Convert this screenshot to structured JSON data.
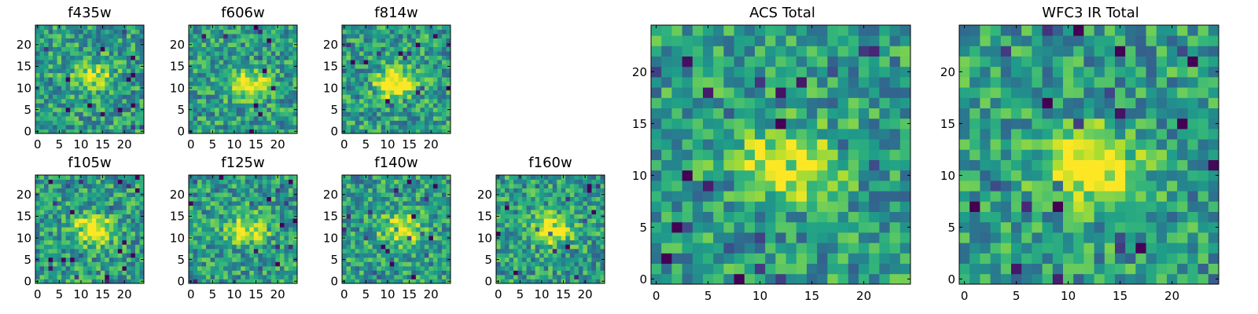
{
  "chart_data": [
    {
      "type": "heatmap",
      "title": "f435w",
      "xlim": [
        0,
        24
      ],
      "ylim": [
        0,
        24
      ],
      "xticks": [
        0,
        5,
        10,
        15,
        20
      ],
      "yticks": [
        0,
        5,
        10,
        15,
        20
      ],
      "grid": false,
      "colormap": "viridis",
      "bright_center": [
        13,
        13
      ],
      "contrast": 0.35
    },
    {
      "type": "heatmap",
      "title": "f606w",
      "xlim": [
        0,
        24
      ],
      "ylim": [
        0,
        24
      ],
      "xticks": [
        0,
        5,
        10,
        15,
        20
      ],
      "yticks": [
        0,
        5,
        10,
        15,
        20
      ],
      "grid": false,
      "colormap": "viridis",
      "bright_center": [
        13,
        11
      ],
      "contrast": 0.55
    },
    {
      "type": "heatmap",
      "title": "f814w",
      "xlim": [
        0,
        24
      ],
      "ylim": [
        0,
        24
      ],
      "xticks": [
        0,
        5,
        10,
        15,
        20
      ],
      "yticks": [
        0,
        5,
        10,
        15,
        20
      ],
      "grid": false,
      "colormap": "viridis",
      "bright_center": [
        12,
        11
      ],
      "contrast": 0.6
    },
    {
      "type": "heatmap",
      "title": "f105w",
      "xlim": [
        0,
        24
      ],
      "ylim": [
        0,
        24
      ],
      "xticks": [
        0,
        5,
        10,
        15,
        20
      ],
      "yticks": [
        0,
        5,
        10,
        15,
        20
      ],
      "grid": false,
      "colormap": "viridis",
      "bright_center": [
        13,
        12
      ],
      "contrast": 0.6
    },
    {
      "type": "heatmap",
      "title": "f125w",
      "xlim": [
        0,
        24
      ],
      "ylim": [
        0,
        24
      ],
      "xticks": [
        0,
        5,
        10,
        15,
        20
      ],
      "yticks": [
        0,
        5,
        10,
        15,
        20
      ],
      "grid": false,
      "colormap": "viridis",
      "bright_center": [
        13,
        12
      ],
      "contrast": 0.5
    },
    {
      "type": "heatmap",
      "title": "f140w",
      "xlim": [
        0,
        24
      ],
      "ylim": [
        0,
        24
      ],
      "xticks": [
        0,
        5,
        10,
        15,
        20
      ],
      "yticks": [
        0,
        5,
        10,
        15,
        20
      ],
      "grid": false,
      "colormap": "viridis",
      "bright_center": [
        13,
        12
      ],
      "contrast": 0.5
    },
    {
      "type": "heatmap",
      "title": "f160w",
      "xlim": [
        0,
        24
      ],
      "ylim": [
        0,
        24
      ],
      "xticks": [
        0,
        5,
        10,
        15,
        20
      ],
      "yticks": [
        0,
        5,
        10,
        15,
        20
      ],
      "grid": false,
      "colormap": "viridis",
      "bright_center": [
        12,
        12
      ],
      "contrast": 0.6
    },
    {
      "type": "heatmap",
      "title": "ACS Total",
      "xlim": [
        0,
        24
      ],
      "ylim": [
        0,
        24
      ],
      "xticks": [
        0,
        5,
        10,
        15,
        20
      ],
      "yticks": [
        0,
        5,
        10,
        15,
        20
      ],
      "grid": false,
      "colormap": "viridis",
      "bright_center": [
        13,
        11
      ],
      "contrast": 0.6
    },
    {
      "type": "heatmap",
      "title": "WFC3 IR Total",
      "xlim": [
        0,
        24
      ],
      "ylim": [
        0,
        24
      ],
      "xticks": [
        0,
        5,
        10,
        15,
        20
      ],
      "yticks": [
        0,
        5,
        10,
        15,
        20
      ],
      "grid": false,
      "colormap": "viridis",
      "bright_center": [
        12,
        11
      ],
      "contrast": 0.65
    }
  ]
}
